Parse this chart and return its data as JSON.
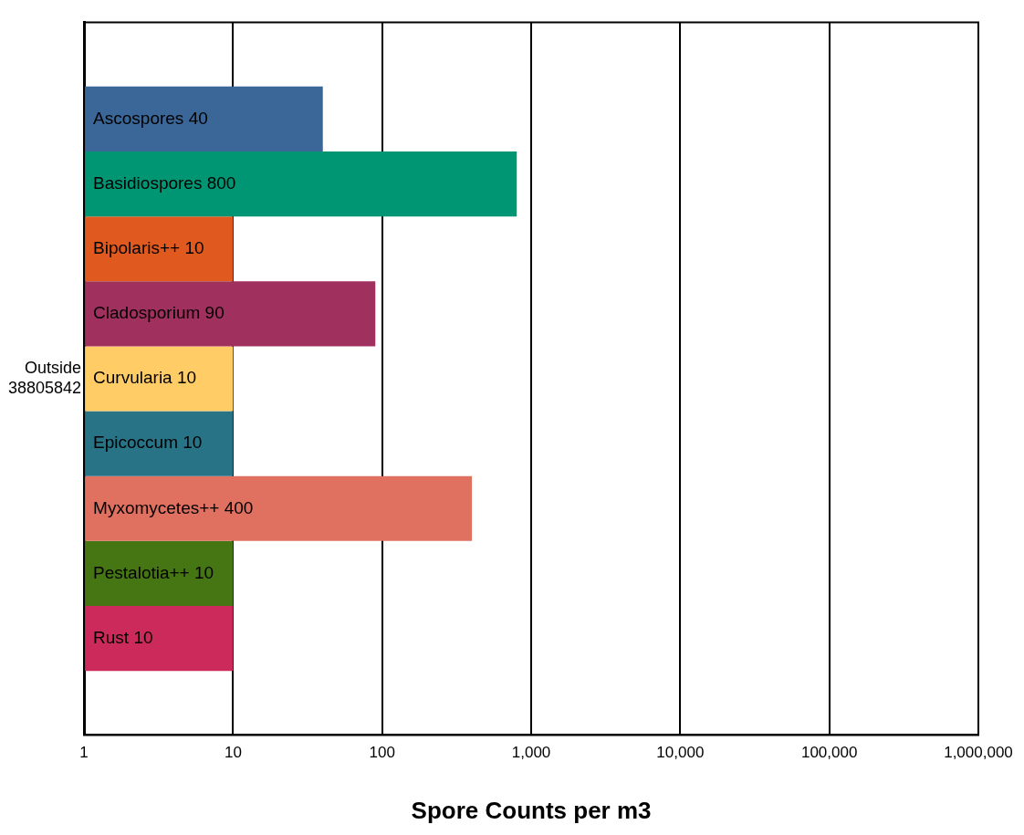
{
  "chart_data": {
    "type": "bar",
    "orientation": "horizontal",
    "xlabel": "Spore Counts per m3",
    "categories": [
      "Outside 38805842"
    ],
    "series": [
      {
        "name": "Ascospores",
        "color": "#3a6698",
        "values": [
          40
        ]
      },
      {
        "name": "Basidiospores",
        "color": "#009673",
        "values": [
          800
        ]
      },
      {
        "name": "Bipolaris++",
        "color": "#e05a20",
        "values": [
          10
        ]
      },
      {
        "name": "Cladosporium",
        "color": "#a0305e",
        "values": [
          90
        ]
      },
      {
        "name": "Curvularia",
        "color": "#ffcc66",
        "values": [
          10
        ]
      },
      {
        "name": "Epicoccum",
        "color": "#287386",
        "values": [
          10
        ]
      },
      {
        "name": "Myxomycetes++",
        "color": "#e07060",
        "values": [
          400
        ]
      },
      {
        "name": "Pestalotia++",
        "color": "#467614",
        "values": [
          10
        ]
      },
      {
        "name": "Rust",
        "color": "#cc2a5a",
        "values": [
          10
        ]
      }
    ],
    "log": "x",
    "xlim": [
      1,
      1000000
    ],
    "xticks": [
      1,
      10,
      100,
      {
        "value": 1000,
        "label": "1,000"
      },
      {
        "value": 10000,
        "label": "10,000"
      },
      {
        "value": 100000,
        "label": "100,000"
      },
      {
        "value": 1000000,
        "label": "1,000,000"
      }
    ],
    "grid": "x",
    "legend": false,
    "data_labels": true
  }
}
